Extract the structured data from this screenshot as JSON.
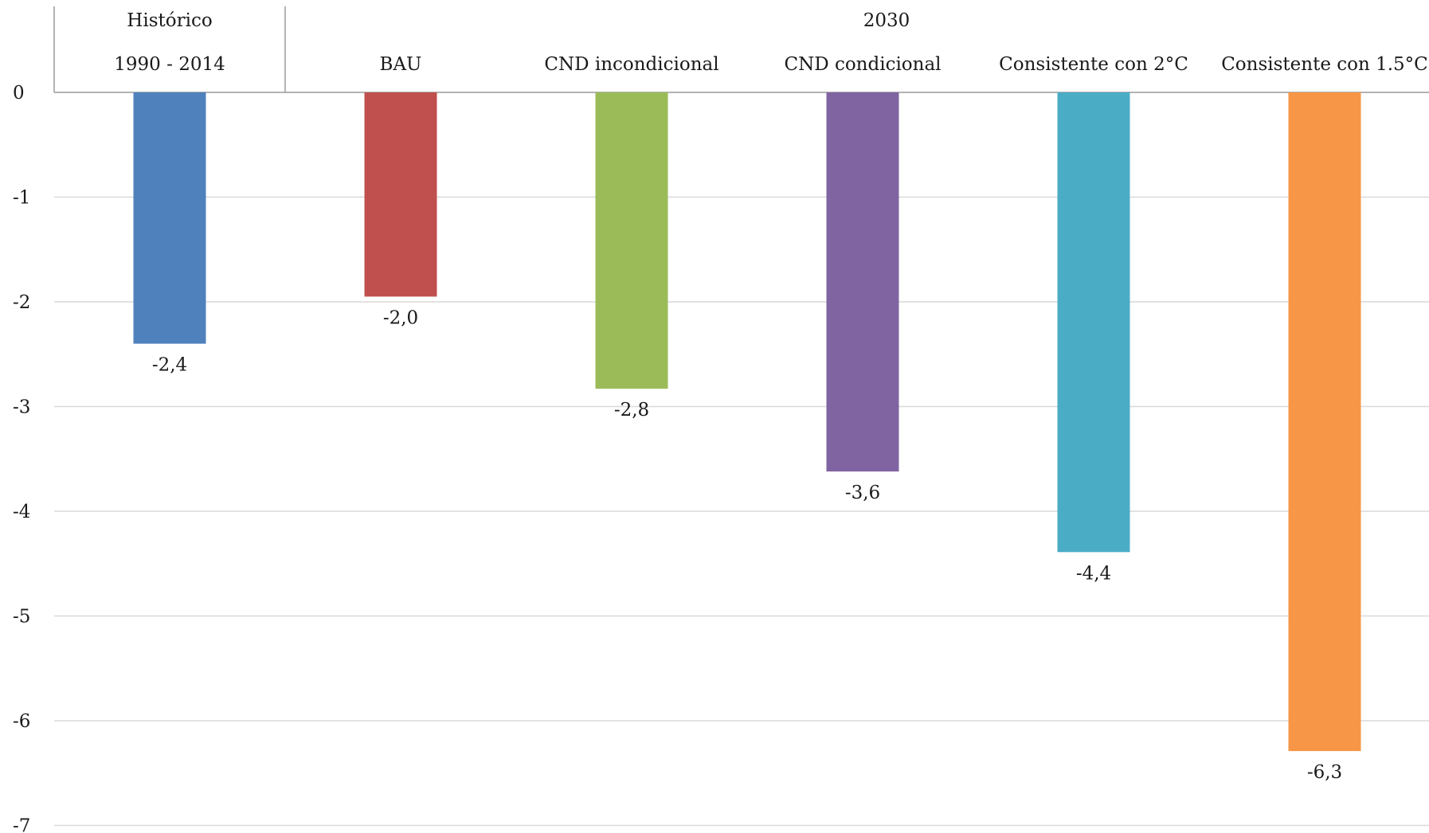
{
  "chart_data": {
    "type": "bar",
    "group_labels": [
      "Histórico",
      "2030"
    ],
    "categories": [
      "1990 - 2014",
      "BAU",
      "CND incondicional",
      "CND condicional",
      "Consistente con 2°C",
      "Consistente con 1.5°C"
    ],
    "groups": [
      0,
      1,
      1,
      1,
      1,
      1
    ],
    "values": [
      -2.4,
      -1.95,
      -2.83,
      -3.62,
      -4.39,
      -6.29
    ],
    "value_labels": [
      "-2,4",
      "-2,0",
      "-2,8",
      "-3,6",
      "-4,4",
      "-6,3"
    ],
    "colors": [
      "#4f81bd",
      "#c0504d",
      "#9bbb59",
      "#8064a2",
      "#4bacc6",
      "#f79646"
    ],
    "ylim": [
      -7,
      0
    ],
    "yticks": [
      0,
      -1,
      -2,
      -3,
      -4,
      -5,
      -6,
      -7
    ],
    "grid": true,
    "title": "",
    "xlabel": "",
    "ylabel": ""
  }
}
